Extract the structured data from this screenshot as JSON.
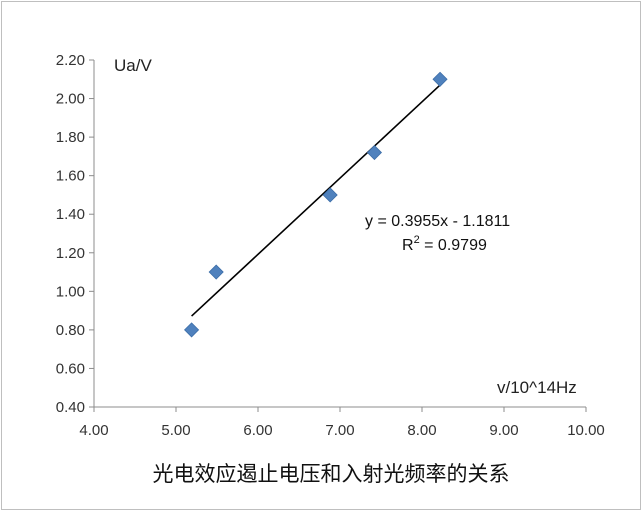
{
  "chart_data": {
    "type": "scatter",
    "title": "光电效应遏止电压和入射光频率的关系",
    "xlabel": "v/10^14Hz",
    "ylabel": "Ua/V",
    "xlim": [
      4.0,
      10.0
    ],
    "ylim": [
      0.4,
      2.2
    ],
    "xticks": [
      "4.00",
      "5.00",
      "6.00",
      "7.00",
      "8.00",
      "9.00",
      "10.00"
    ],
    "yticks": [
      "0.40",
      "0.60",
      "0.80",
      "1.00",
      "1.20",
      "1.40",
      "1.60",
      "1.80",
      "2.00",
      "2.20"
    ],
    "grid": false,
    "legend": "none",
    "marker_color": "#4F81BD",
    "series": [
      {
        "x": [
          5.19,
          5.49,
          6.88,
          7.42,
          8.22
        ],
        "y": [
          0.8,
          1.1,
          1.5,
          1.72,
          2.1
        ]
      }
    ],
    "trendline": {
      "type": "linear",
      "slope": 0.3955,
      "intercept": -1.1811,
      "x_range": [
        5.19,
        8.22
      ],
      "equation": "y = 0.3955x - 1.1811",
      "r2_prefix": "R",
      "r2_superscript": "2",
      "r2_value": " = 0.9799"
    }
  }
}
